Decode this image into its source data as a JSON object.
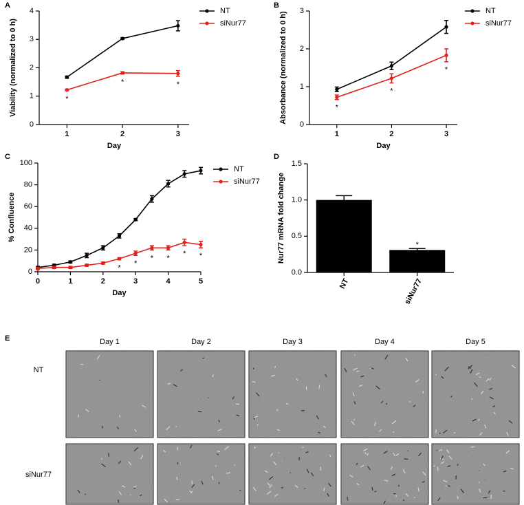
{
  "chart_data": [
    {
      "type": "line",
      "label": "A",
      "x_label": "Day",
      "y_label": "Viability (normalized to 0 h)",
      "x": [
        1,
        2,
        3
      ],
      "xlim": [
        0.5,
        3.2
      ],
      "xticks": [
        1,
        2,
        3
      ],
      "ylim": [
        0,
        4
      ],
      "yticks": [
        0,
        1,
        2,
        3,
        4
      ],
      "legend": "right",
      "series": [
        {
          "name": "NT",
          "color": "#000000",
          "values": [
            1.67,
            3.03,
            3.48
          ],
          "errors": [
            0.04,
            0.03,
            0.18
          ]
        },
        {
          "name": "siNur77",
          "color": "#e0201b",
          "values": [
            1.22,
            1.82,
            1.8
          ],
          "errors": [
            0.03,
            0.04,
            0.1
          ],
          "significance_labels": [
            "*",
            "*",
            "*"
          ]
        }
      ]
    },
    {
      "type": "line",
      "label": "B",
      "x_label": "Day",
      "y_label": "Absorbance (normalized to 0 h)",
      "x": [
        1,
        2,
        3
      ],
      "xlim": [
        0.5,
        3.2
      ],
      "xticks": [
        1,
        2,
        3
      ],
      "ylim": [
        0,
        3
      ],
      "yticks": [
        0,
        1,
        2,
        3
      ],
      "legend": "right",
      "series": [
        {
          "name": "NT",
          "color": "#000000",
          "values": [
            0.93,
            1.55,
            2.58
          ],
          "errors": [
            0.06,
            0.1,
            0.17
          ]
        },
        {
          "name": "siNur77",
          "color": "#e0201b",
          "values": [
            0.72,
            1.22,
            1.83
          ],
          "errors": [
            0.06,
            0.12,
            0.17
          ],
          "significance_labels": [
            "*",
            "*",
            "*"
          ]
        }
      ]
    },
    {
      "type": "line",
      "label": "C",
      "x_label": "Day",
      "y_label": "% Confluence",
      "x": [
        0,
        0.5,
        1,
        1.5,
        2,
        2.5,
        3,
        3.5,
        4,
        4.5,
        5
      ],
      "xlim": [
        0,
        5
      ],
      "xticks": [
        0,
        1,
        2,
        3,
        4,
        5
      ],
      "ylim": [
        0,
        100
      ],
      "yticks": [
        0,
        20,
        40,
        60,
        80,
        100
      ],
      "legend": "right",
      "series": [
        {
          "name": "NT",
          "color": "#000000",
          "values": [
            4,
            6,
            9,
            15,
            22,
            33,
            48,
            67,
            81,
            90,
            93
          ],
          "errors": [
            1,
            1,
            1,
            2,
            2,
            2,
            1,
            3,
            3,
            3,
            3
          ]
        },
        {
          "name": "siNur77",
          "color": "#e0201b",
          "values": [
            3,
            4,
            4,
            6,
            8,
            12,
            17,
            22,
            22,
            27,
            25
          ],
          "errors": [
            1,
            1,
            1,
            1,
            1,
            1,
            2,
            2,
            2,
            3,
            3
          ],
          "significance_labels": [
            null,
            null,
            null,
            null,
            null,
            "*",
            "*",
            "*",
            "*",
            "*",
            "*"
          ]
        }
      ]
    },
    {
      "type": "bar",
      "label": "D",
      "y_label": "Nur77 mRNA fold change",
      "categories": [
        "NT",
        "siNur77"
      ],
      "values": [
        1.0,
        0.31
      ],
      "errors": [
        0.06,
        0.02
      ],
      "color": "#000000",
      "significance_labels": [
        null,
        "*"
      ],
      "ylim": [
        0,
        1.5
      ],
      "yticks": [
        {
          "value": 0,
          "label": "0.0"
        },
        {
          "value": 0.5,
          "label": "0.5"
        },
        {
          "value": 1,
          "label": "1.0"
        },
        {
          "value": 1.5,
          "label": "1.5"
        }
      ]
    }
  ],
  "image_grid": {
    "label": "E",
    "columns": [
      "Day 1",
      "Day 2",
      "Day 3",
      "Day 4",
      "Day 5"
    ],
    "rows": [
      "NT",
      "siNur77"
    ]
  }
}
